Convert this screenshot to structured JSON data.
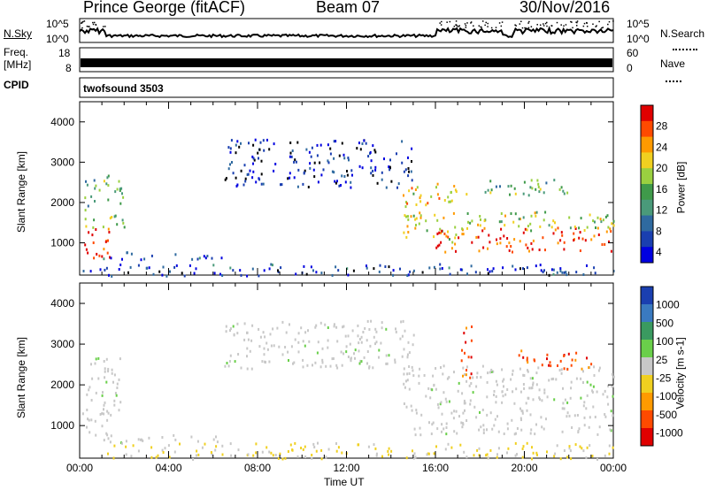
{
  "header": {
    "station": "Prince George (fitACF)",
    "beam": "Beam 07",
    "date": "30/Nov/2016"
  },
  "left_labels": {
    "nsky": "N.Sky",
    "freq_top": "Freq.",
    "freq_unit": "[MHz]",
    "cpid": "CPID"
  },
  "right_labels": {
    "nsearch": "N.Search",
    "nave": "Nave"
  },
  "small_axes": {
    "nsky_ticks": [
      "10^5",
      "10^0"
    ],
    "nsearch_ticks": [
      "10^5",
      "10^0"
    ],
    "freq_ticks": [
      "18",
      "8"
    ],
    "nave_ticks": [
      "60",
      "0"
    ]
  },
  "cpid_text": "twofsound 3503",
  "chart_data": [
    {
      "type": "heatmap",
      "panel": "power",
      "ylabel": "Slant Range [km]",
      "ylim": [
        200,
        4500
      ],
      "yticks": [
        "4000",
        "3000",
        "2000",
        "1000"
      ],
      "xlim_hours": [
        0,
        24
      ],
      "colorbar": {
        "label": "Power [dB]",
        "ticks": [
          "28",
          "24",
          "20",
          "16",
          "12",
          "8",
          "4"
        ],
        "colors": [
          "#e00000",
          "#ff4a00",
          "#ff9a00",
          "#f0d020",
          "#9ad040",
          "#3f9a4a",
          "#4a9a7a",
          "#2f6aa0",
          "#1a3fb0",
          "#0000e0"
        ]
      },
      "regions": [
        {
          "t": [
            0.0,
            1.4
          ],
          "r": [
            600,
            1400
          ],
          "level": 0.95
        },
        {
          "t": [
            0.2,
            2.0
          ],
          "r": [
            1400,
            2700
          ],
          "level": 0.45
        },
        {
          "t": [
            1.0,
            6.5
          ],
          "r": [
            600,
            800
          ],
          "level": 0.2
        },
        {
          "t": [
            6.5,
            15.0
          ],
          "r": [
            2400,
            3600
          ],
          "level": 0.1
        },
        {
          "t": [
            14.5,
            17.0
          ],
          "r": [
            1000,
            2500
          ],
          "level": 0.65
        },
        {
          "t": [
            16.0,
            24.0
          ],
          "r": [
            800,
            1400
          ],
          "level": 0.9
        },
        {
          "t": [
            16.5,
            24.0
          ],
          "r": [
            1300,
            1800
          ],
          "level": 0.55
        },
        {
          "t": [
            17.0,
            22.0
          ],
          "r": [
            2200,
            2600
          ],
          "level": 0.45
        },
        {
          "t": [
            0.0,
            24.0
          ],
          "r": [
            200,
            500
          ],
          "level": 0.15
        }
      ]
    },
    {
      "type": "heatmap",
      "panel": "velocity",
      "ylabel": "Slant Range [km]",
      "ylim": [
        200,
        4500
      ],
      "yticks": [
        "4000",
        "3000",
        "2000",
        "1000"
      ],
      "xlabel": "Time UT",
      "xticks": [
        "00:00",
        "04:00",
        "08:00",
        "12:00",
        "16:00",
        "20:00",
        "00:00"
      ],
      "xlim_hours": [
        0,
        24
      ],
      "colorbar": {
        "label": "Velocity [m s-1]",
        "ticks": [
          "1000",
          "500",
          "100",
          "25",
          "-25",
          "-100",
          "-500",
          "-1000"
        ],
        "colors": [
          "#1a3fb0",
          "#3a7ac0",
          "#3a9a60",
          "#6acf4a",
          "#c8c8c8",
          "#f0d020",
          "#ff9a00",
          "#ff4a00",
          "#e00000"
        ]
      },
      "regions": [
        {
          "t": [
            0.0,
            1.4
          ],
          "r": [
            600,
            1400
          ],
          "v": 25
        },
        {
          "t": [
            0.2,
            2.0
          ],
          "r": [
            1400,
            2700
          ],
          "v": 25
        },
        {
          "t": [
            1.0,
            6.5
          ],
          "r": [
            600,
            800
          ],
          "v": 25
        },
        {
          "t": [
            6.5,
            15.0
          ],
          "r": [
            2400,
            3600
          ],
          "v": 25
        },
        {
          "t": [
            14.5,
            24.0
          ],
          "r": [
            800,
            2500
          ],
          "v": 25
        },
        {
          "t": [
            17.0,
            17.7
          ],
          "r": [
            2200,
            3500
          ],
          "v": -500
        },
        {
          "t": [
            19.5,
            23.0
          ],
          "r": [
            2400,
            2900
          ],
          "v": -500
        },
        {
          "t": [
            1.0,
            24.0
          ],
          "r": [
            200,
            600
          ],
          "v": -100
        }
      ]
    }
  ]
}
